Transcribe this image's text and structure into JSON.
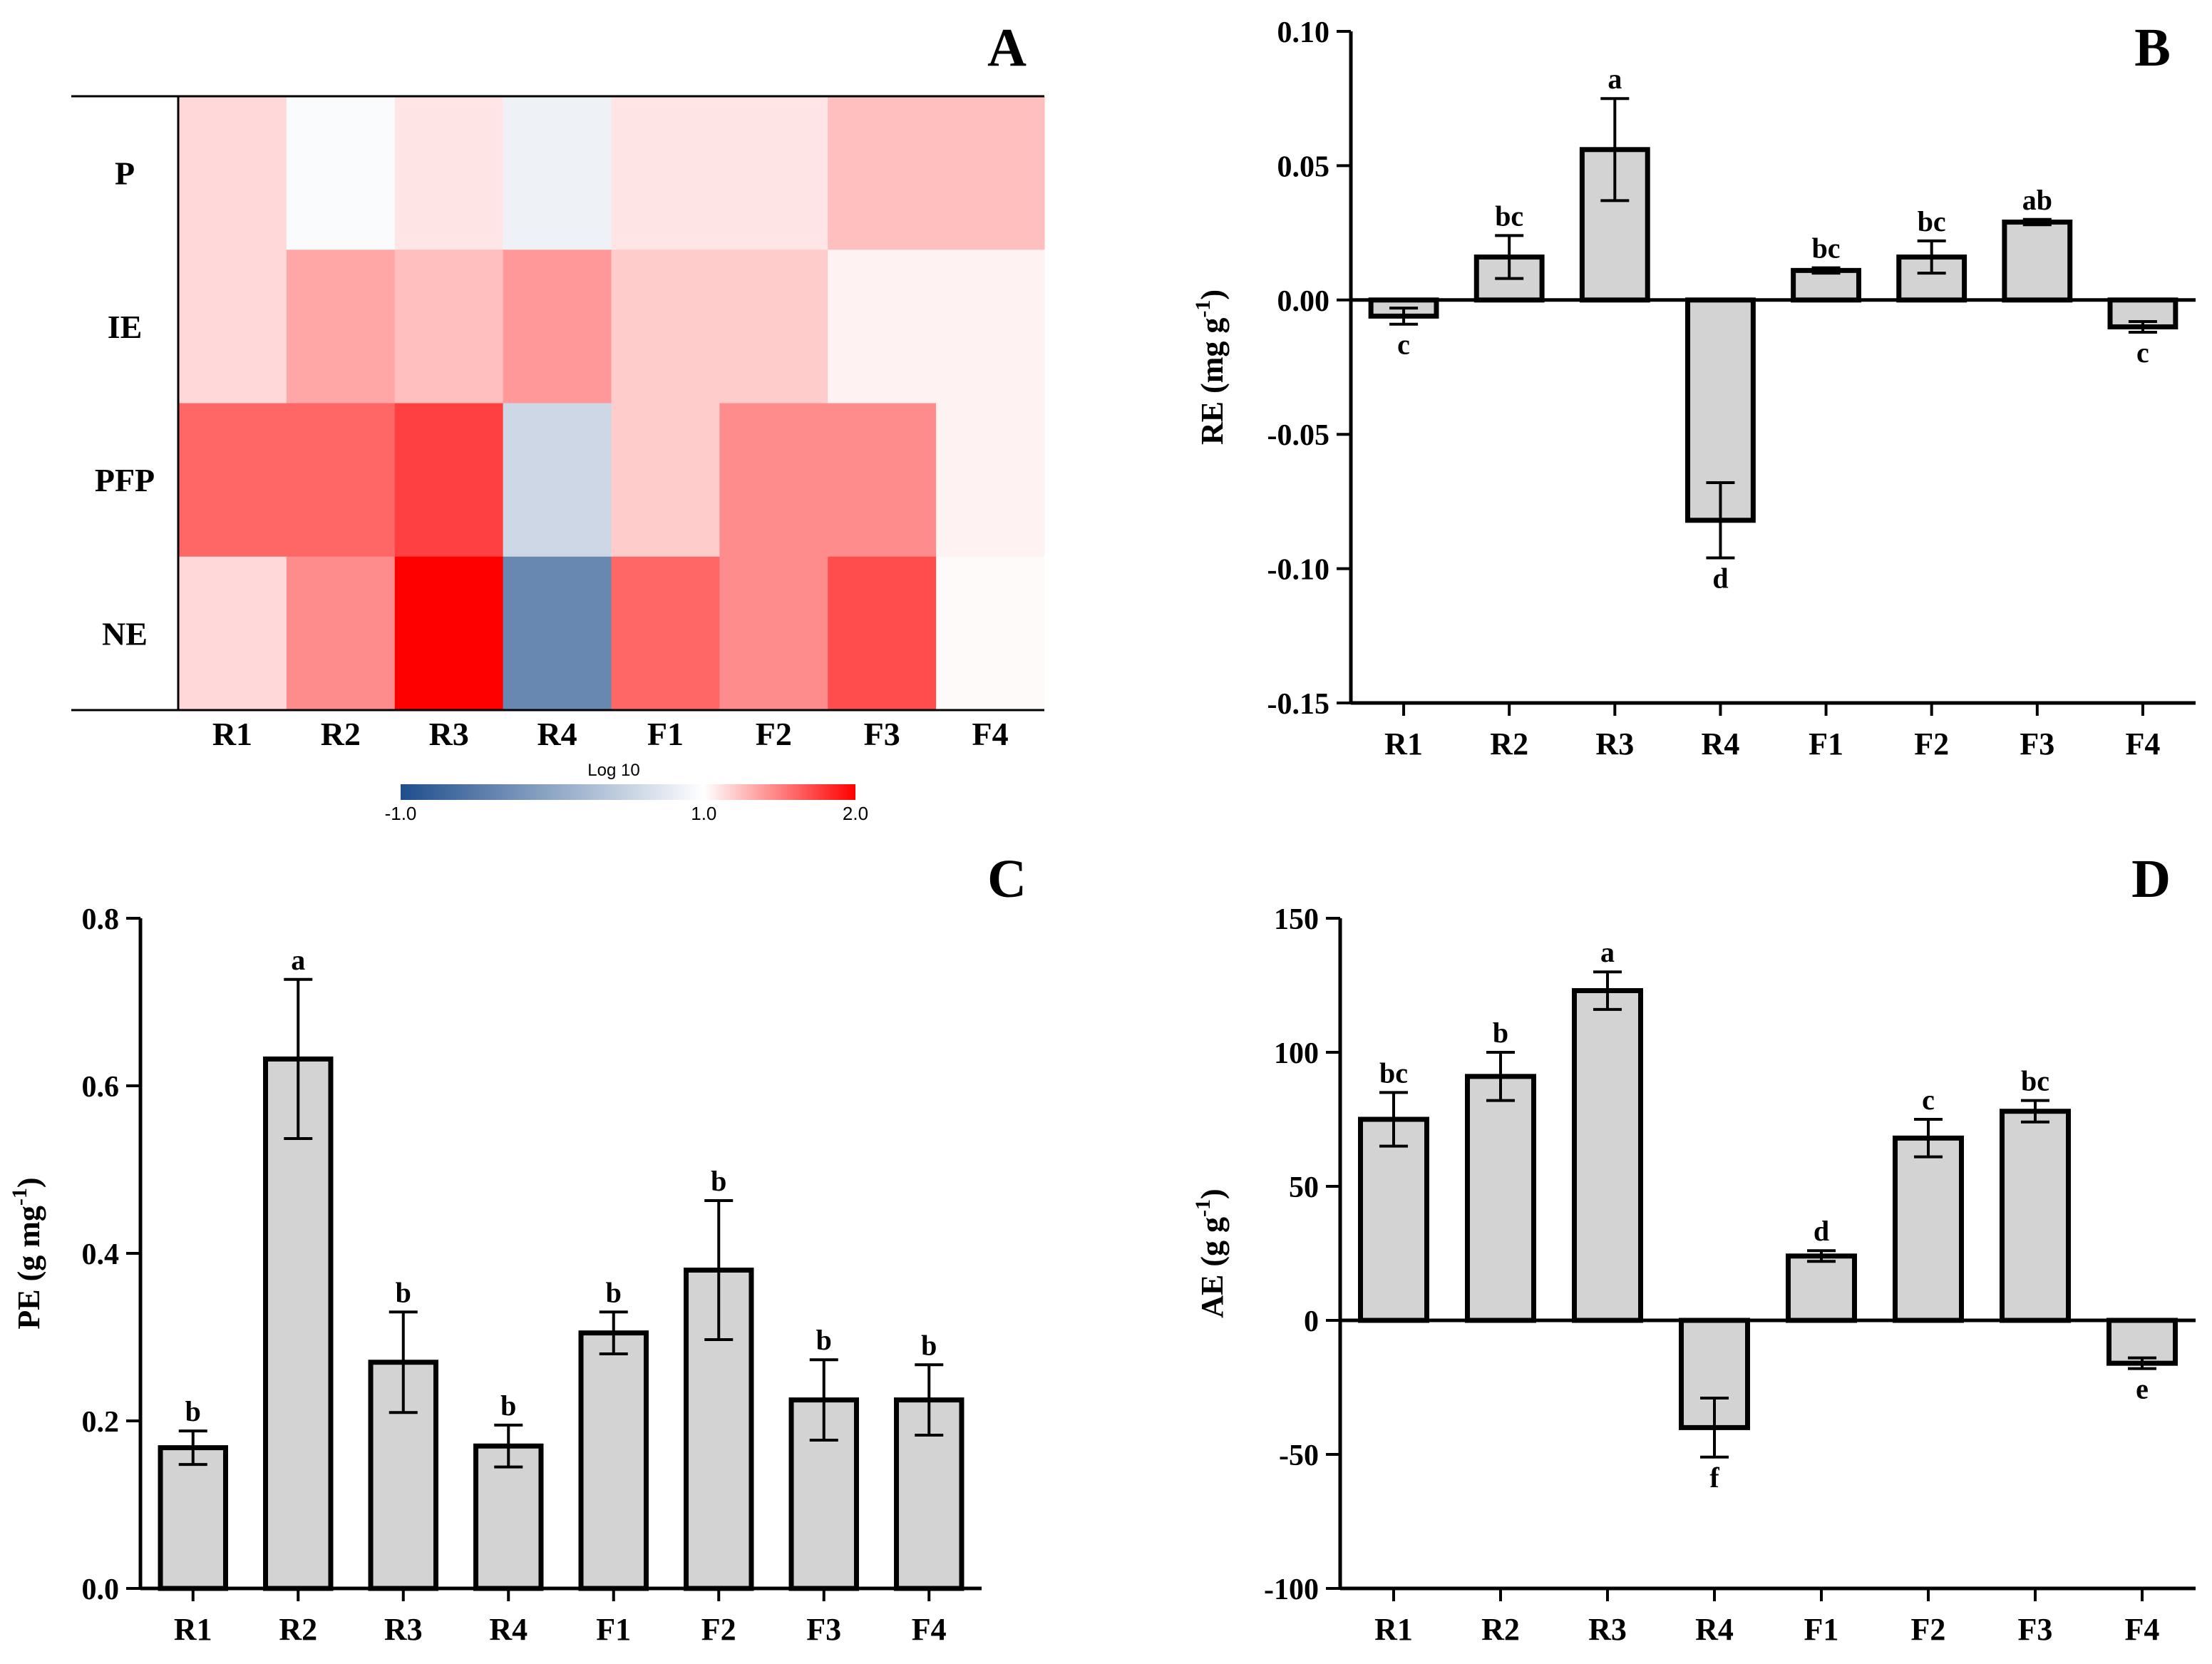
{
  "colors": {
    "bar_fill": "#d3d3d3",
    "stroke": "#000000",
    "heat_neg": "#1f4e8c",
    "heat_mid": "#ffffff",
    "heat_pos": "#ff0000"
  },
  "chart_data": [
    {
      "panel": "A",
      "type": "heatmap",
      "rows": [
        "P",
        "IE",
        "PFP",
        "NE"
      ],
      "columns": [
        "R1",
        "R2",
        "R3",
        "R4",
        "F1",
        "F2",
        "F3",
        "F4"
      ],
      "values": [
        [
          1.15,
          0.95,
          1.1,
          0.85,
          1.1,
          1.1,
          1.25,
          1.25
        ],
        [
          1.15,
          1.35,
          1.25,
          1.4,
          1.2,
          1.2,
          1.05,
          1.05
        ],
        [
          1.6,
          1.6,
          1.75,
          0.55,
          1.2,
          1.45,
          1.45,
          1.05
        ],
        [
          1.15,
          1.45,
          2.0,
          -0.35,
          1.6,
          1.45,
          1.7,
          1.02
        ]
      ],
      "colorbar": {
        "title": "Log 10",
        "min": -1.0,
        "mid": 1.0,
        "max": 2.0,
        "tick_labels": [
          "-1.0",
          "1.0",
          "2.0"
        ]
      }
    },
    {
      "panel": "B",
      "type": "bar",
      "categories": [
        "R1",
        "R2",
        "R3",
        "R4",
        "F1",
        "F2",
        "F3",
        "F4"
      ],
      "values": [
        -0.006,
        0.016,
        0.056,
        -0.082,
        0.011,
        0.016,
        0.029,
        -0.01
      ],
      "errors": [
        0.003,
        0.008,
        0.019,
        0.014,
        0.001,
        0.006,
        0.001,
        0.002
      ],
      "sig_letters": [
        "c",
        "bc",
        "a",
        "d",
        "bc",
        "bc",
        "ab",
        "c"
      ],
      "ylabel_main": "RE (mg g",
      "ylabel_sup": "-1",
      "ylabel_end": ")",
      "ylim": [
        -0.15,
        0.1
      ],
      "yticks": [
        -0.15,
        -0.1,
        -0.05,
        0.0,
        0.05,
        0.1
      ],
      "ytick_labels": [
        "-0.15",
        "-0.10",
        "-0.05",
        "0.00",
        "0.05",
        "0.10"
      ]
    },
    {
      "panel": "C",
      "type": "bar",
      "categories": [
        "R1",
        "R2",
        "R3",
        "R4",
        "F1",
        "F2",
        "F3",
        "F4"
      ],
      "values": [
        0.168,
        0.632,
        0.27,
        0.17,
        0.305,
        0.38,
        0.225,
        0.225
      ],
      "errors": [
        0.02,
        0.095,
        0.06,
        0.025,
        0.025,
        0.083,
        0.048,
        0.042
      ],
      "sig_letters": [
        "b",
        "a",
        "b",
        "b",
        "b",
        "b",
        "b",
        "b"
      ],
      "ylabel_main": "PE (g mg",
      "ylabel_sup": "-1",
      "ylabel_end": ")",
      "ylim": [
        0.0,
        0.8
      ],
      "yticks": [
        0.0,
        0.2,
        0.4,
        0.6,
        0.8
      ],
      "ytick_labels": [
        "0.0",
        "0.2",
        "0.4",
        "0.6",
        "0.8"
      ]
    },
    {
      "panel": "D",
      "type": "bar",
      "categories": [
        "R1",
        "R2",
        "R3",
        "R4",
        "F1",
        "F2",
        "F3",
        "F4"
      ],
      "values": [
        75,
        91,
        123,
        -40,
        24,
        68,
        78,
        -16
      ],
      "errors": [
        10,
        9,
        7,
        11,
        2,
        7,
        4,
        2
      ],
      "sig_letters": [
        "bc",
        "b",
        "a",
        "f",
        "d",
        "c",
        "bc",
        "e"
      ],
      "ylabel_main": "AE (g g",
      "ylabel_sup": "-1",
      "ylabel_end": ")",
      "ylim": [
        -100,
        150
      ],
      "yticks": [
        -100,
        -50,
        0,
        50,
        100,
        150
      ],
      "ytick_labels": [
        "-100",
        "-50",
        "0",
        "50",
        "100",
        "150"
      ]
    }
  ]
}
